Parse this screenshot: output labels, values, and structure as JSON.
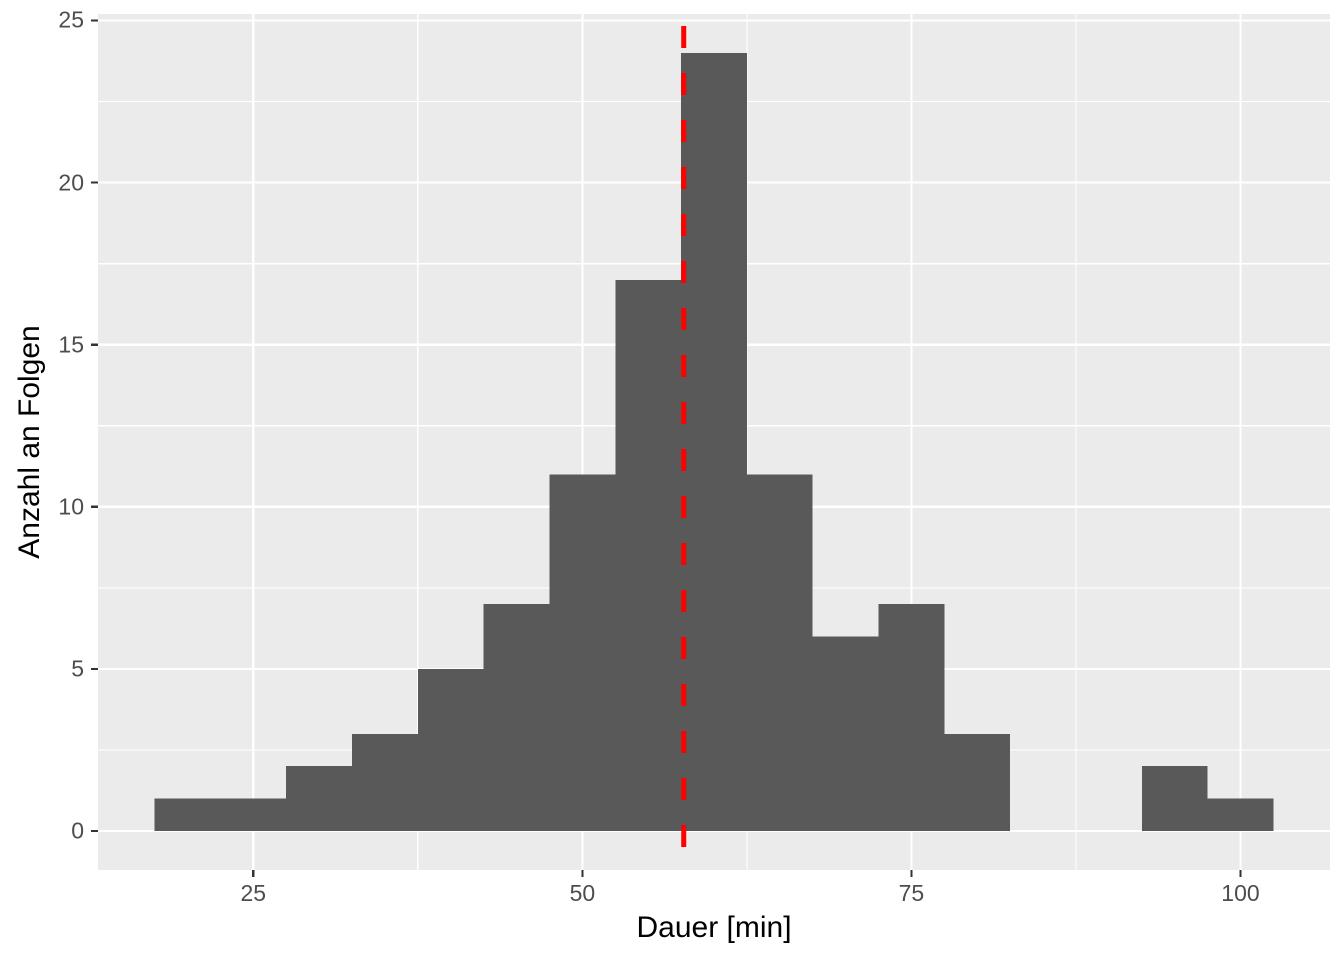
{
  "figure": {
    "kind": "ggplot-style histogram",
    "background": "#FFFFFF"
  },
  "chart_data": {
    "type": "histogram",
    "title": "",
    "xlabel": "Dauer [min]",
    "ylabel": "Anzahl an Folgen",
    "bin_width": 5,
    "bin_starts": [
      17.5,
      22.5,
      27.5,
      32.5,
      37.5,
      42.5,
      47.5,
      52.5,
      57.5,
      62.5,
      67.5,
      72.5,
      77.5,
      82.5,
      87.5,
      92.5,
      97.5
    ],
    "counts": [
      1,
      1,
      2,
      3,
      5,
      7,
      11,
      17,
      24,
      11,
      6,
      7,
      3,
      0,
      0,
      2,
      1
    ],
    "x_ticks": [
      25,
      50,
      75,
      100
    ],
    "x_tick_labels": [
      "25",
      "50",
      "75",
      "100"
    ],
    "y_ticks": [
      0,
      5,
      10,
      15,
      20,
      25
    ],
    "y_tick_labels": [
      "0",
      "5",
      "10",
      "15",
      "20",
      "25"
    ],
    "x_minor_gridlines": [
      37.5,
      62.5,
      87.5
    ],
    "y_minor_gridlines": [
      2.5,
      7.5,
      12.5,
      17.5,
      22.5
    ],
    "xlim": [
      13.2,
      106.8
    ],
    "ylim": [
      -1.2,
      25.2
    ],
    "grid": "on",
    "legend": "none",
    "vline": {
      "x": 57.7,
      "style": "dashed",
      "color": "#FF0000"
    },
    "colors": {
      "bar_fill": "#595959",
      "panel_background": "#EBEBEB",
      "gridline": "#FFFFFF",
      "tick_mark": "#333333",
      "tick_label": "#4D4D4D",
      "axis_title": "#000000",
      "figure_background": "#FFFFFF"
    }
  }
}
